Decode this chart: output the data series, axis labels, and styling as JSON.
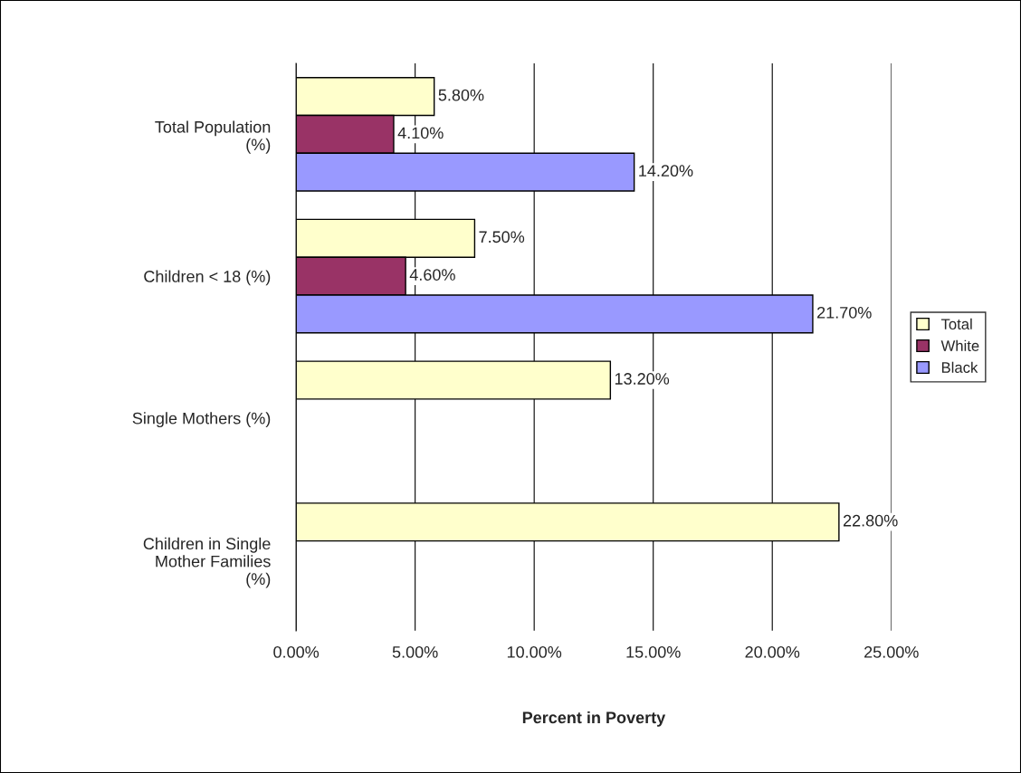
{
  "chart_data": {
    "type": "bar",
    "orientation": "horizontal",
    "xlabel": "Percent in Poverty",
    "categories": [
      "Total Population\n(%)",
      "Children < 18 (%)",
      "Single Mothers (%)",
      "Children in Single\nMother Families\n(%)"
    ],
    "series": [
      {
        "name": "Total",
        "color": "#ffffcc",
        "values": [
          5.8,
          7.5,
          13.2,
          22.8
        ],
        "value_labels": [
          "5.80%",
          "7.50%",
          "13.20%",
          "22.80%"
        ]
      },
      {
        "name": "White",
        "color": "#993366",
        "values": [
          4.1,
          4.6,
          null,
          null
        ],
        "value_labels": [
          "4.10%",
          "4.60%",
          null,
          null
        ]
      },
      {
        "name": "Black",
        "color": "#9999ff",
        "values": [
          14.2,
          21.7,
          null,
          null
        ],
        "value_labels": [
          "14.20%",
          "21.70%",
          null,
          null
        ]
      }
    ],
    "xlim": [
      0,
      25
    ],
    "xticks": [
      {
        "value": 0,
        "label": "0.00%"
      },
      {
        "value": 5,
        "label": "5.00%"
      },
      {
        "value": 10,
        "label": "10.00%"
      },
      {
        "value": 15,
        "label": "15.00%"
      },
      {
        "value": 20,
        "label": "20.00%"
      },
      {
        "value": 25,
        "label": "25.00%"
      }
    ],
    "grid": "x",
    "legend": "right"
  }
}
